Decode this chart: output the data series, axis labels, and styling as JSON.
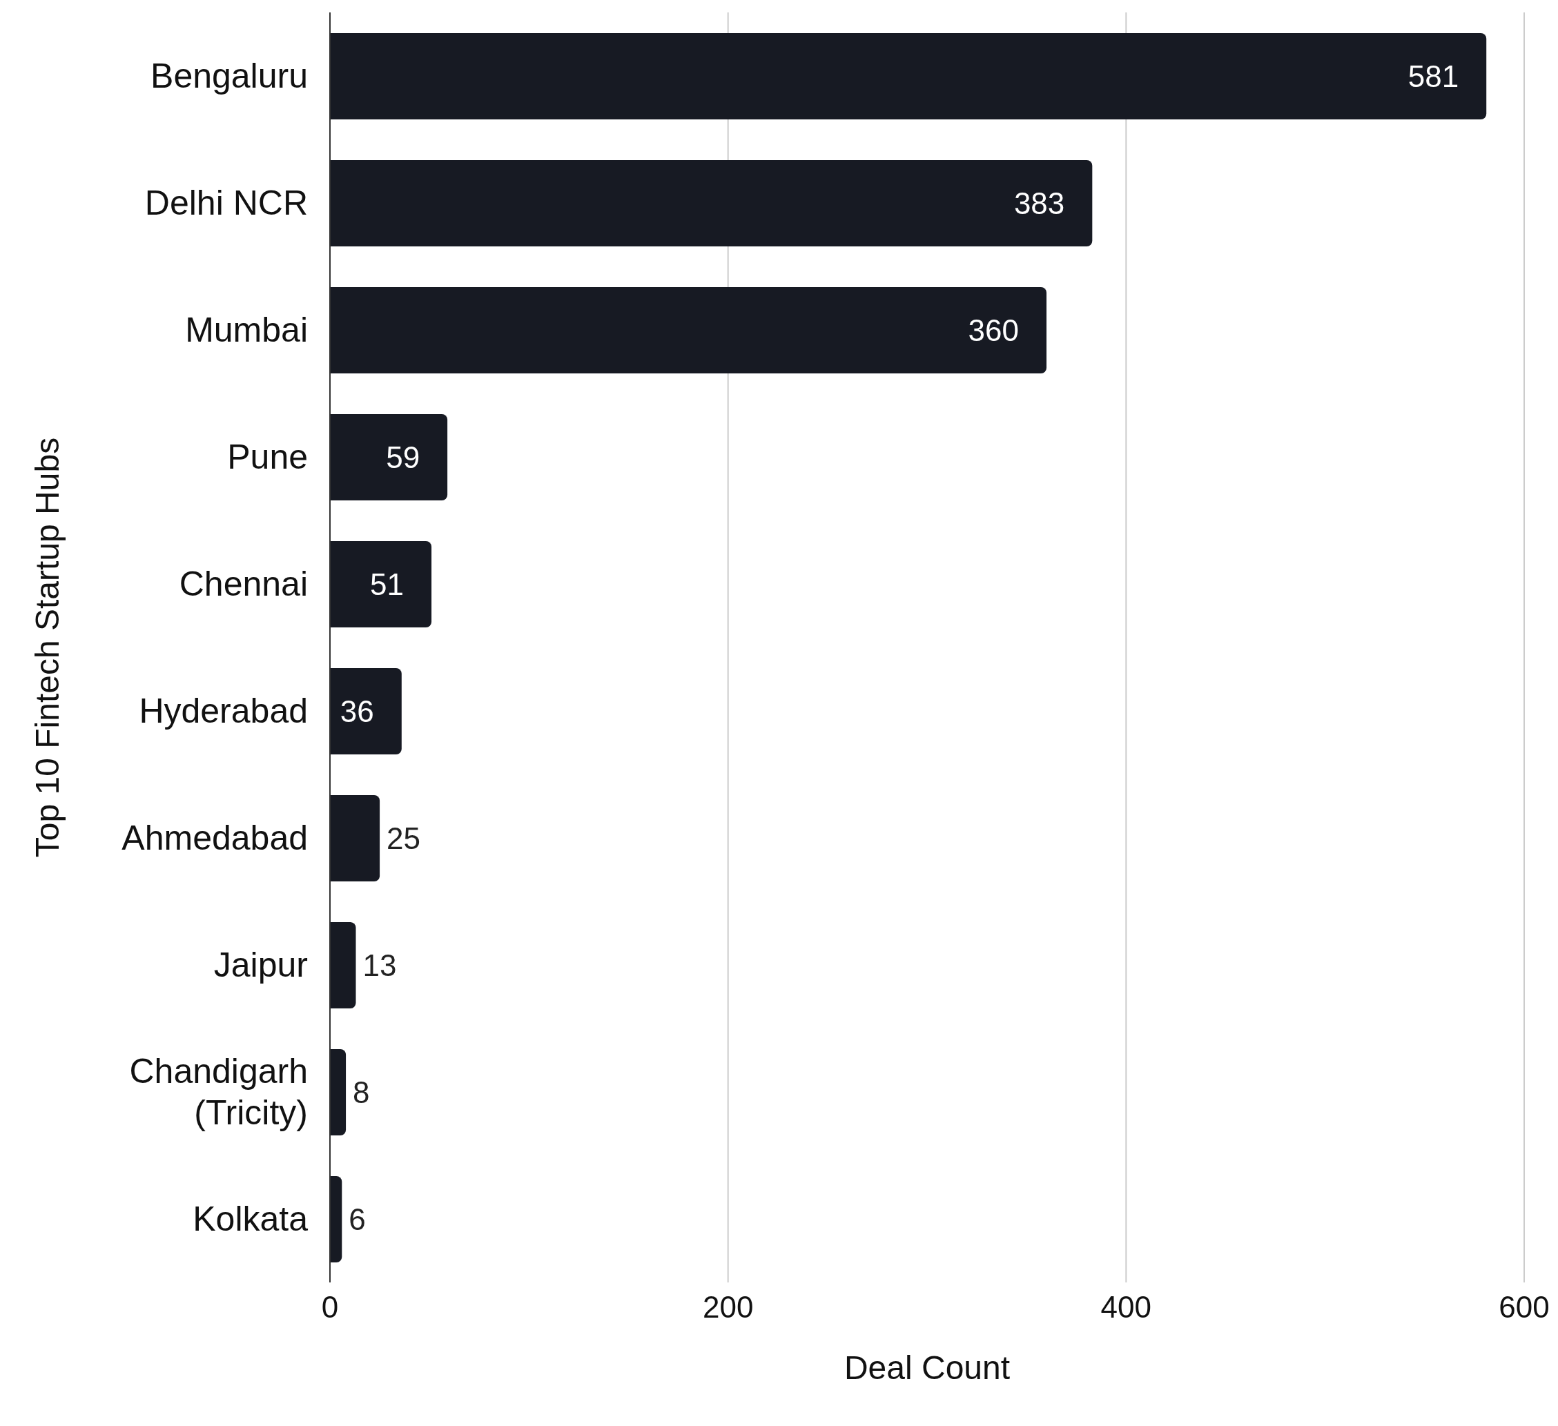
{
  "chart_data": {
    "type": "bar",
    "orientation": "horizontal",
    "xlabel": "Deal Count",
    "ylabel": "Top 10 Fintech Startup Hubs",
    "categories": [
      "Bengaluru",
      "Delhi NCR",
      "Mumbai",
      "Pune",
      "Chennai",
      "Hyderabad",
      "Ahmedabad",
      "Jaipur",
      "Chandigarh (Tricity)",
      "Kolkata"
    ],
    "values": [
      581,
      383,
      360,
      59,
      51,
      36,
      25,
      13,
      8,
      6
    ],
    "color": "#171a23",
    "xlim": [
      0,
      600
    ],
    "xticks": [
      0,
      200,
      400,
      600
    ],
    "grid": "x",
    "data_labels": true,
    "legend": false
  }
}
